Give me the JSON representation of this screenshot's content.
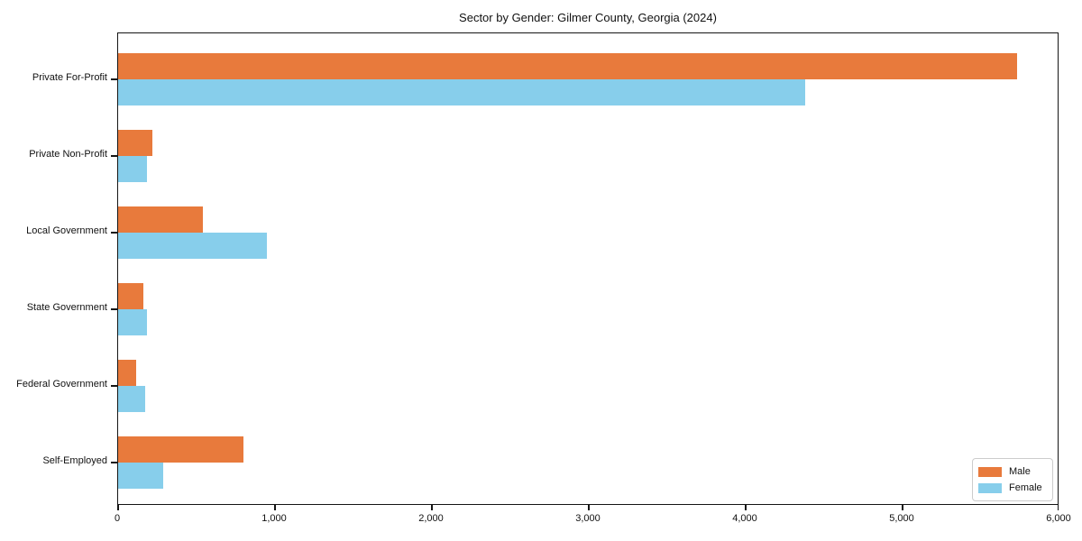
{
  "chart_data": {
    "type": "bar",
    "orientation": "horizontal",
    "title": "Sector by Gender: Gilmer County, Georgia (2024)",
    "categories": [
      "Private For-Profit",
      "Private Non-Profit",
      "Local Government",
      "State Government",
      "Federal Government",
      "Self-Employed"
    ],
    "series": [
      {
        "name": "Male",
        "color": "#e87a3c",
        "values": [
          5730,
          220,
          540,
          160,
          115,
          800
        ]
      },
      {
        "name": "Female",
        "color": "#87ceeb",
        "values": [
          4380,
          185,
          950,
          185,
          170,
          285
        ]
      }
    ],
    "xlim": [
      0,
      6000
    ],
    "x_ticks": [
      {
        "value": 0,
        "label": "0"
      },
      {
        "value": 1000,
        "label": "1,000"
      },
      {
        "value": 2000,
        "label": "2,000"
      },
      {
        "value": 3000,
        "label": "3,000"
      },
      {
        "value": 4000,
        "label": "4,000"
      },
      {
        "value": 5000,
        "label": "5,000"
      },
      {
        "value": 6000,
        "label": "6,000"
      }
    ],
    "xlabel": "",
    "ylabel": "",
    "grid": false,
    "legend_position": "lower right",
    "axis_color": "#151515",
    "background_color": "#ffffff"
  }
}
